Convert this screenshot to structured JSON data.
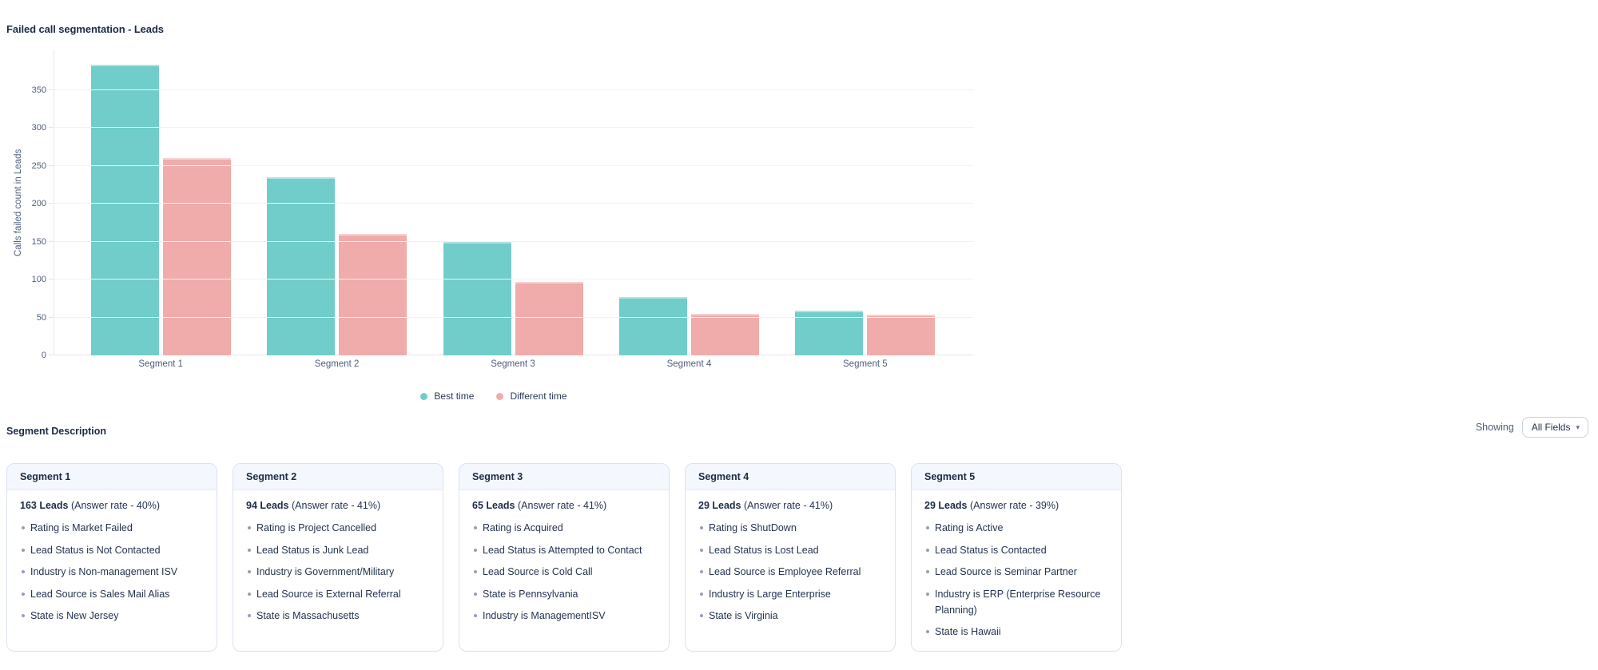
{
  "chart_data": {
    "type": "bar",
    "title": "Failed call segmentation - Leads",
    "ylabel": "Calls failed count in Leads",
    "xlabel": "",
    "categories": [
      "Segment 1",
      "Segment 2",
      "Segment 3",
      "Segment 4",
      "Segment 5"
    ],
    "series": [
      {
        "name": "Best time",
        "color": "#71CDC9",
        "values": [
          383,
          235,
          150,
          77,
          59
        ]
      },
      {
        "name": "Different time",
        "color": "#F0ABAB",
        "values": [
          260,
          160,
          97,
          55,
          54
        ]
      }
    ],
    "yticks": [
      0,
      50,
      100,
      150,
      200,
      250,
      300,
      350
    ],
    "ylim": [
      0,
      400
    ],
    "grid": true,
    "legend_position": "bottom-center"
  },
  "section_header": {
    "title": "Segment Description",
    "showing_label": "Showing",
    "filter_button": {
      "label": "All Fields",
      "caret_icon": "▾"
    }
  },
  "segment_cards": [
    {
      "title": "Segment 1",
      "leads": "163 Leads",
      "answer_rate": "(Answer rate - 40%)",
      "criteria": [
        "Rating is Market Failed",
        "Lead Status is Not Contacted",
        "Industry is Non-management ISV",
        "Lead Source is Sales Mail Alias",
        "State is New Jersey"
      ]
    },
    {
      "title": "Segment 2",
      "leads": "94 Leads",
      "answer_rate": "(Answer rate - 41%)",
      "criteria": [
        "Rating is Project Cancelled",
        "Lead Status is Junk Lead",
        "Industry is Government/Military",
        "Lead Source is External Referral",
        "State is Massachusetts"
      ]
    },
    {
      "title": "Segment 3",
      "leads": "65 Leads",
      "answer_rate": "(Answer rate - 41%)",
      "criteria": [
        "Rating is Acquired",
        "Lead Status is Attempted to Contact",
        "Lead Source is Cold Call",
        "State is Pennsylvania",
        "Industry is ManagementISV"
      ]
    },
    {
      "title": "Segment 4",
      "leads": "29 Leads",
      "answer_rate": "(Answer rate - 41%)",
      "criteria": [
        "Rating is ShutDown",
        "Lead Status is Lost Lead",
        "Lead Source is Employee Referral",
        "Industry is Large Enterprise",
        "State is Virginia"
      ]
    },
    {
      "title": "Segment 5",
      "leads": "29 Leads",
      "answer_rate": "(Answer rate - 39%)",
      "criteria": [
        "Rating is Active",
        "Lead Status is Contacted",
        "Lead Source is Seminar Partner",
        "Industry is ERP (Enterprise Resource Planning)",
        "State is Hawaii"
      ]
    }
  ]
}
